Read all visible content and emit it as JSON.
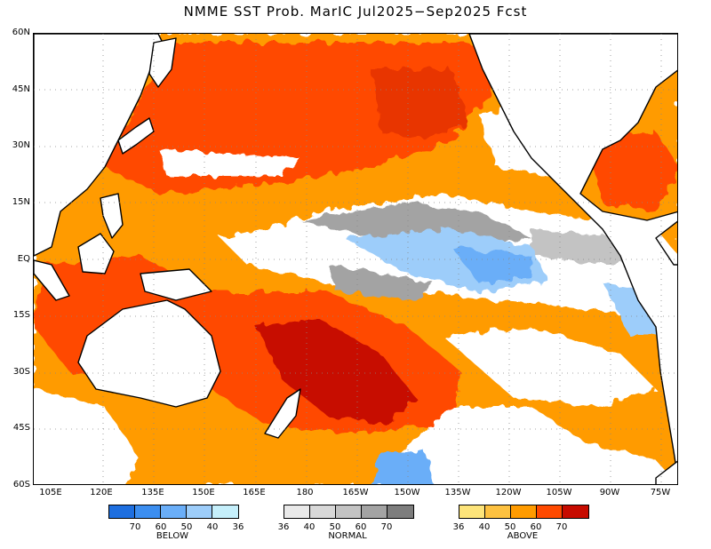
{
  "title": "NMME SST Prob. MarIC  Jul2025−Sep2025 Fcst",
  "lat_labels": [
    "60N",
    "45N",
    "30N",
    "15N",
    "EQ",
    "15S",
    "30S",
    "45S",
    "60S"
  ],
  "lon_labels": [
    "105E",
    "120E",
    "135E",
    "150E",
    "165E",
    "180",
    "165W",
    "150W",
    "135W",
    "120W",
    "105W",
    "90W",
    "75W"
  ],
  "legend": {
    "below": {
      "label": "BELOW",
      "ticks": [
        "70",
        "60",
        "50",
        "40",
        "36"
      ],
      "colors": [
        "#1e6fe0",
        "#3c8ef0",
        "#6aaef8",
        "#9dcdfa",
        "#c5effb"
      ]
    },
    "normal": {
      "label": "NORMAL",
      "ticks": [
        "36",
        "40",
        "50",
        "60",
        "70"
      ],
      "colors": [
        "#e9e9e9",
        "#d8d8d8",
        "#c3c3c3",
        "#a3a3a3",
        "#7d7d7d"
      ]
    },
    "above": {
      "label": "ABOVE",
      "ticks": [
        "36",
        "40",
        "50",
        "60",
        "70"
      ],
      "colors": [
        "#fde47a",
        "#fdc140",
        "#ff9b00",
        "#ff4a00",
        "#c70b00"
      ]
    }
  }
}
